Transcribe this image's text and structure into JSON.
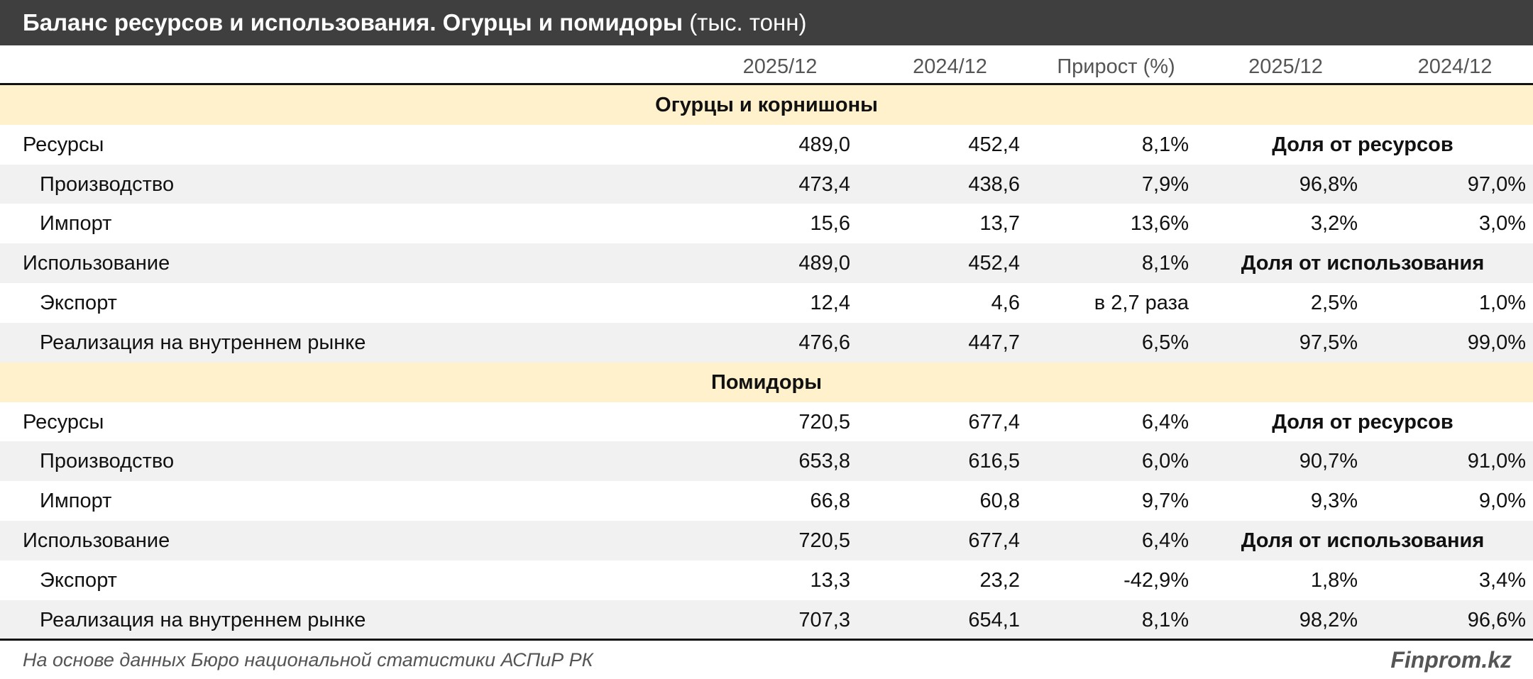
{
  "title": {
    "main": "Баланс ресурсов и использования. Огурцы и помидоры",
    "unit": "(тыс. тонн)"
  },
  "header": [
    "2025/12",
    "2024/12",
    "Прирост (%)",
    "2025/12",
    "2024/12"
  ],
  "sections": [
    {
      "name": "Огурцы и корнишоны",
      "rows": [
        {
          "label": "Ресурсы",
          "indent": false,
          "v1": "489,0",
          "v2": "452,4",
          "v3": "8,1%",
          "share_header": "Доля от ресурсов"
        },
        {
          "label": "Производство",
          "indent": true,
          "v1": "473,4",
          "v2": "438,6",
          "v3": "7,9%",
          "s1": "96,8%",
          "s2": "97,0%"
        },
        {
          "label": "Импорт",
          "indent": true,
          "v1": "15,6",
          "v2": "13,7",
          "v3": "13,6%",
          "s1": "3,2%",
          "s2": "3,0%"
        },
        {
          "label": "Использование",
          "indent": false,
          "v1": "489,0",
          "v2": "452,4",
          "v3": "8,1%",
          "share_header": "Доля от использования"
        },
        {
          "label": "Экспорт",
          "indent": true,
          "v1": "12,4",
          "v2": "4,6",
          "v3": "в 2,7 раза",
          "s1": "2,5%",
          "s2": "1,0%"
        },
        {
          "label": "Реализация на внутреннем рынке",
          "indent": true,
          "v1": "476,6",
          "v2": "447,7",
          "v3": "6,5%",
          "s1": "97,5%",
          "s2": "99,0%"
        }
      ]
    },
    {
      "name": "Помидоры",
      "rows": [
        {
          "label": "Ресурсы",
          "indent": false,
          "v1": "720,5",
          "v2": "677,4",
          "v3": "6,4%",
          "share_header": "Доля от ресурсов"
        },
        {
          "label": "Производство",
          "indent": true,
          "v1": "653,8",
          "v2": "616,5",
          "v3": "6,0%",
          "s1": "90,7%",
          "s2": "91,0%"
        },
        {
          "label": "Импорт",
          "indent": true,
          "v1": "66,8",
          "v2": "60,8",
          "v3": "9,7%",
          "s1": "9,3%",
          "s2": "9,0%"
        },
        {
          "label": "Использование",
          "indent": false,
          "v1": "720,5",
          "v2": "677,4",
          "v3": "6,4%",
          "share_header": "Доля от использования"
        },
        {
          "label": "Экспорт",
          "indent": true,
          "v1": "13,3",
          "v2": "23,2",
          "v3": "-42,9%",
          "s1": "1,8%",
          "s2": "3,4%"
        },
        {
          "label": "Реализация на внутреннем рынке",
          "indent": true,
          "v1": "707,3",
          "v2": "654,1",
          "v3": "8,1%",
          "s1": "98,2%",
          "s2": "96,6%"
        }
      ]
    }
  ],
  "footer": {
    "source": "На основе данных Бюро национальной статистики АСПиР РК",
    "brand": "Finprom.kz"
  },
  "colors": {
    "title_bg": "#3f3f3f",
    "section_bg": "#fff1cc",
    "stripe_bg": "#f1f1f1"
  }
}
